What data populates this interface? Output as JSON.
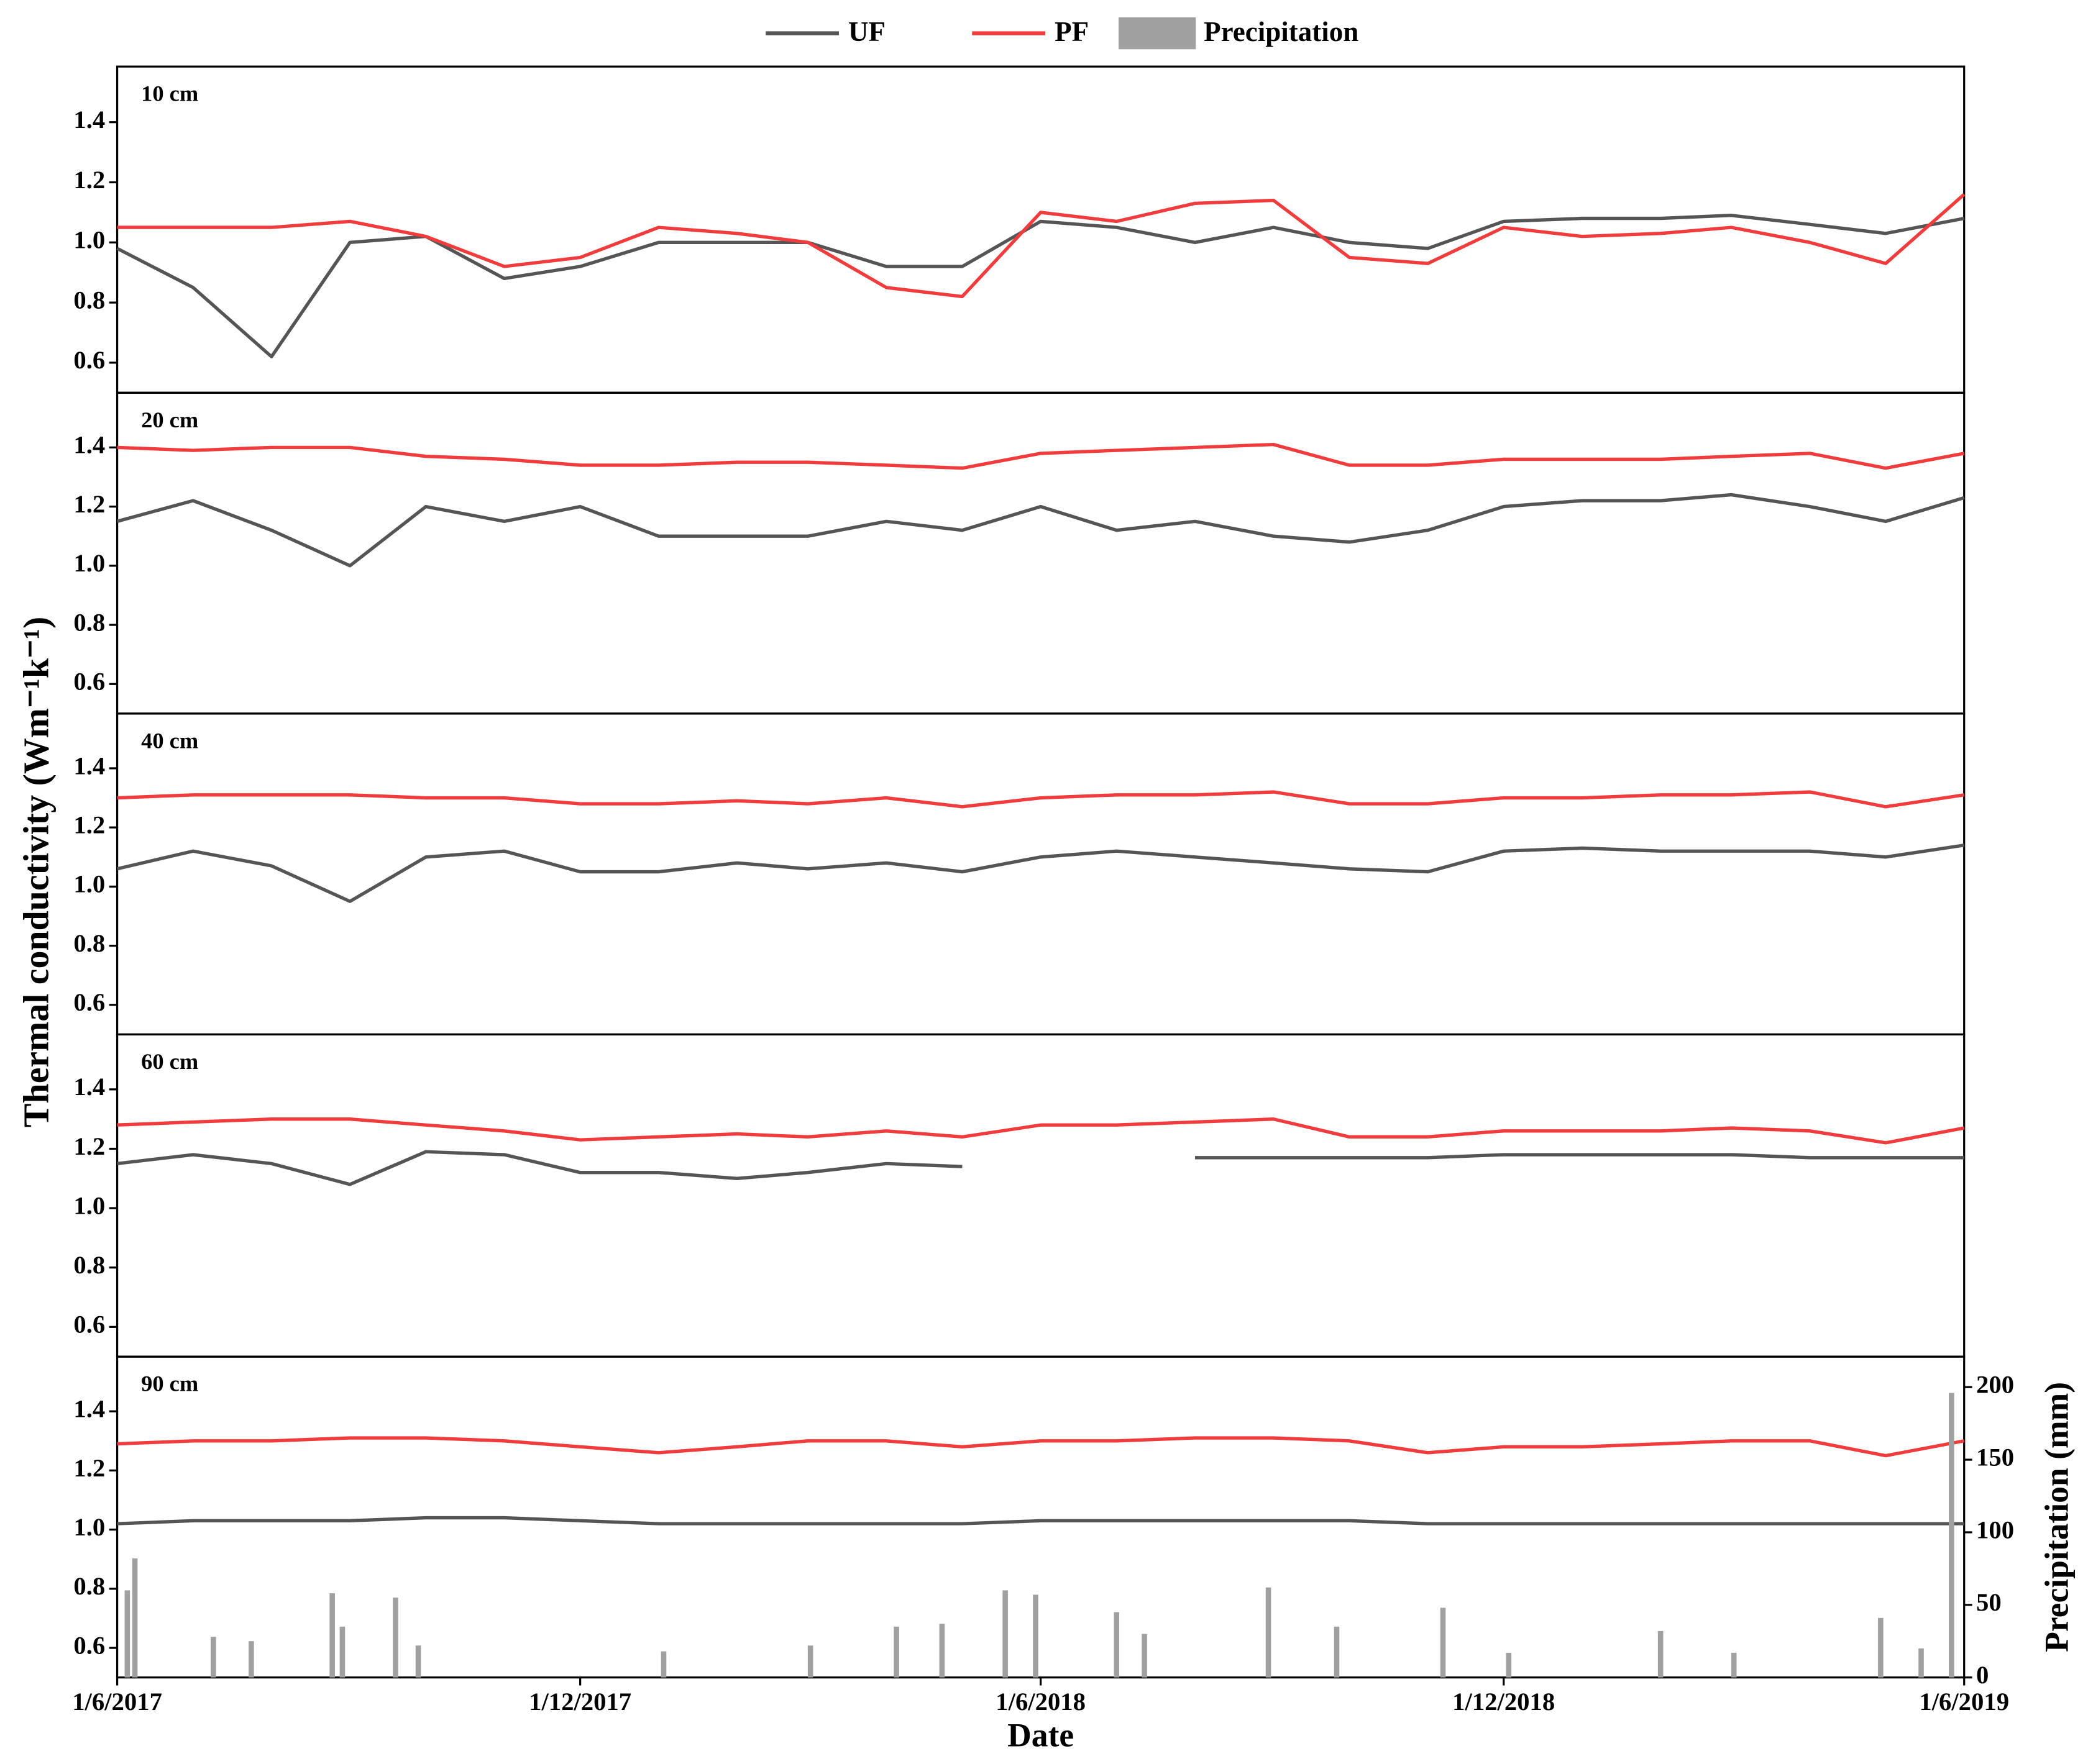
{
  "chart_data": [
    {
      "type": "line",
      "title": "10 cm",
      "ylabel": "Thermal conductivity (Wm⁻¹k⁻¹)",
      "legend": "top",
      "x": [
        "1/6/2017",
        "1/7/2017",
        "1/8/2017",
        "1/9/2017",
        "1/10/2017",
        "1/11/2017",
        "1/12/2017",
        "1/1/2018",
        "1/2/2018",
        "1/3/2018",
        "1/4/2018",
        "1/5/2018",
        "1/6/2018",
        "1/7/2018",
        "1/8/2018",
        "1/9/2018",
        "1/10/2018",
        "1/11/2018",
        "1/12/2018",
        "1/1/2019",
        "1/2/2019",
        "1/3/2019",
        "1/4/2019",
        "1/5/2019",
        "1/6/2019"
      ],
      "xlim": [
        "1/6/2017",
        "1/6/2019"
      ],
      "ylim": [
        0.5,
        1.585
      ],
      "yticks": [
        0.6,
        0.8,
        {
          "value": 1,
          "label": "1.0"
        },
        1.2,
        1.4
      ],
      "series": [
        {
          "name": "UF",
          "color": "#555555",
          "values": [
            0.98,
            0.85,
            0.62,
            1.0,
            1.02,
            0.88,
            0.92,
            1.0,
            1.0,
            1.0,
            0.92,
            0.92,
            1.07,
            1.05,
            1.0,
            1.05,
            1.0,
            0.98,
            1.07,
            1.08,
            1.08,
            1.09,
            1.06,
            1.03,
            1.08
          ]
        },
        {
          "name": "PF",
          "color": "#f03c3c",
          "values": [
            1.05,
            1.05,
            1.05,
            1.07,
            1.02,
            0.92,
            0.95,
            1.05,
            1.03,
            1.0,
            0.85,
            0.82,
            1.1,
            1.07,
            1.13,
            1.14,
            0.95,
            0.93,
            1.05,
            1.02,
            1.03,
            1.05,
            1.0,
            0.93,
            1.16
          ]
        }
      ]
    },
    {
      "type": "line",
      "title": "20 cm",
      "x": [
        "1/6/2017",
        "1/7/2017",
        "1/8/2017",
        "1/9/2017",
        "1/10/2017",
        "1/11/2017",
        "1/12/2017",
        "1/1/2018",
        "1/2/2018",
        "1/3/2018",
        "1/4/2018",
        "1/5/2018",
        "1/6/2018",
        "1/7/2018",
        "1/8/2018",
        "1/9/2018",
        "1/10/2018",
        "1/11/2018",
        "1/12/2018",
        "1/1/2019",
        "1/2/2019",
        "1/3/2019",
        "1/4/2019",
        "1/5/2019",
        "1/6/2019"
      ],
      "xlim": [
        "1/6/2017",
        "1/6/2019"
      ],
      "ylim": [
        0.5,
        1.585
      ],
      "yticks": [
        0.6,
        0.8,
        {
          "value": 1,
          "label": "1.0"
        },
        1.2,
        1.4
      ],
      "series": [
        {
          "name": "UF",
          "color": "#555555",
          "values": [
            1.15,
            1.22,
            1.12,
            1.0,
            1.2,
            1.15,
            1.2,
            1.1,
            1.1,
            1.1,
            1.15,
            1.12,
            1.2,
            1.12,
            1.15,
            1.1,
            1.08,
            1.12,
            1.2,
            1.22,
            1.22,
            1.24,
            1.2,
            1.15,
            1.23
          ]
        },
        {
          "name": "PF",
          "color": "#f03c3c",
          "values": [
            1.4,
            1.39,
            1.4,
            1.4,
            1.37,
            1.36,
            1.34,
            1.34,
            1.35,
            1.35,
            1.34,
            1.33,
            1.38,
            1.39,
            1.4,
            1.41,
            1.34,
            1.34,
            1.36,
            1.36,
            1.36,
            1.37,
            1.38,
            1.33,
            1.38
          ]
        }
      ]
    },
    {
      "type": "line",
      "title": "40 cm",
      "x": [
        "1/6/2017",
        "1/7/2017",
        "1/8/2017",
        "1/9/2017",
        "1/10/2017",
        "1/11/2017",
        "1/12/2017",
        "1/1/2018",
        "1/2/2018",
        "1/3/2018",
        "1/4/2018",
        "1/5/2018",
        "1/6/2018",
        "1/7/2018",
        "1/8/2018",
        "1/9/2018",
        "1/10/2018",
        "1/11/2018",
        "1/12/2018",
        "1/1/2019",
        "1/2/2019",
        "1/3/2019",
        "1/4/2019",
        "1/5/2019",
        "1/6/2019"
      ],
      "xlim": [
        "1/6/2017",
        "1/6/2019"
      ],
      "ylim": [
        0.5,
        1.585
      ],
      "yticks": [
        0.6,
        0.8,
        {
          "value": 1,
          "label": "1.0"
        },
        1.2,
        1.4
      ],
      "series": [
        {
          "name": "UF",
          "color": "#555555",
          "values": [
            1.06,
            1.12,
            1.07,
            0.95,
            1.1,
            1.12,
            1.05,
            1.05,
            1.08,
            1.06,
            1.08,
            1.05,
            1.1,
            1.12,
            1.1,
            1.08,
            1.06,
            1.05,
            1.12,
            1.13,
            1.12,
            1.12,
            1.12,
            1.1,
            1.14
          ]
        },
        {
          "name": "PF",
          "color": "#f03c3c",
          "values": [
            1.3,
            1.31,
            1.31,
            1.31,
            1.3,
            1.3,
            1.28,
            1.28,
            1.29,
            1.28,
            1.3,
            1.27,
            1.3,
            1.31,
            1.31,
            1.32,
            1.28,
            1.28,
            1.3,
            1.3,
            1.31,
            1.31,
            1.32,
            1.27,
            1.31
          ]
        }
      ]
    },
    {
      "type": "line",
      "title": "60 cm",
      "x": [
        "1/6/2017",
        "1/7/2017",
        "1/8/2017",
        "1/9/2017",
        "1/10/2017",
        "1/11/2017",
        "1/12/2017",
        "1/1/2018",
        "1/2/2018",
        "1/3/2018",
        "1/4/2018",
        "1/5/2018",
        "1/6/2018",
        "1/7/2018",
        "1/8/2018",
        "1/9/2018",
        "1/10/2018",
        "1/11/2018",
        "1/12/2018",
        "1/1/2019",
        "1/2/2019",
        "1/3/2019",
        "1/4/2019",
        "1/5/2019",
        "1/6/2019"
      ],
      "xlim": [
        "1/6/2017",
        "1/6/2019"
      ],
      "ylim": [
        0.5,
        1.585
      ],
      "yticks": [
        0.6,
        0.8,
        {
          "value": 1,
          "label": "1.0"
        },
        1.2,
        1.4
      ],
      "series": [
        {
          "name": "UF",
          "color": "#555555",
          "values": [
            1.15,
            1.18,
            1.15,
            1.08,
            1.19,
            1.18,
            1.12,
            1.12,
            1.1,
            1.12,
            1.15,
            1.14,
            null,
            null,
            1.17,
            1.17,
            1.17,
            1.17,
            1.18,
            1.18,
            1.18,
            1.18,
            1.17,
            1.17,
            1.17
          ]
        },
        {
          "name": "PF",
          "color": "#f03c3c",
          "values": [
            1.28,
            1.29,
            1.3,
            1.3,
            1.28,
            1.26,
            1.23,
            1.24,
            1.25,
            1.24,
            1.26,
            1.24,
            1.28,
            1.28,
            1.29,
            1.3,
            1.24,
            1.24,
            1.26,
            1.26,
            1.26,
            1.27,
            1.26,
            1.22,
            1.27
          ]
        }
      ]
    },
    {
      "type": "line",
      "title": "90 cm",
      "xlabel": "Date",
      "y2label": "Precipitation (mm)",
      "x": [
        "1/6/2017",
        "1/7/2017",
        "1/8/2017",
        "1/9/2017",
        "1/10/2017",
        "1/11/2017",
        "1/12/2017",
        "1/1/2018",
        "1/2/2018",
        "1/3/2018",
        "1/4/2018",
        "1/5/2018",
        "1/6/2018",
        "1/7/2018",
        "1/8/2018",
        "1/9/2018",
        "1/10/2018",
        "1/11/2018",
        "1/12/2018",
        "1/1/2019",
        "1/2/2019",
        "1/3/2019",
        "1/4/2019",
        "1/5/2019",
        "1/6/2019"
      ],
      "xlim": [
        "1/6/2017",
        "1/6/2019"
      ],
      "xticks": [
        "1/6/2017",
        "1/12/2017",
        "1/6/2018",
        "1/12/2018",
        "1/6/2019"
      ],
      "ylim": [
        0.5,
        1.585
      ],
      "yticks": [
        0.6,
        0.8,
        {
          "value": 1,
          "label": "1.0"
        },
        1.2,
        1.4
      ],
      "y2lim": [
        0,
        221
      ],
      "y2ticks": [
        0,
        50,
        100,
        150,
        200
      ],
      "series": [
        {
          "name": "UF",
          "color": "#555555",
          "values": [
            1.02,
            1.03,
            1.03,
            1.03,
            1.04,
            1.04,
            1.03,
            1.02,
            1.02,
            1.02,
            1.02,
            1.02,
            1.03,
            1.03,
            1.03,
            1.03,
            1.03,
            1.02,
            1.02,
            1.02,
            1.02,
            1.02,
            1.02,
            1.02,
            1.02
          ]
        },
        {
          "name": "PF",
          "color": "#f03c3c",
          "values": [
            1.29,
            1.3,
            1.3,
            1.31,
            1.31,
            1.3,
            1.28,
            1.26,
            1.28,
            1.3,
            1.3,
            1.28,
            1.3,
            1.3,
            1.31,
            1.31,
            1.3,
            1.26,
            1.28,
            1.28,
            1.29,
            1.3,
            1.3,
            1.25,
            1.3
          ]
        },
        {
          "name": "Precipitation",
          "color": "#a0a0a0",
          "axis": "y2",
          "type": "bar",
          "x": [
            "5/6/2017",
            "8/6/2017",
            "9/7/2017",
            "24/7/2017",
            "25/8/2017",
            "29/8/2017",
            "19/9/2017",
            "28/9/2017",
            "3/1/2018",
            "2/3/2018",
            "5/4/2018",
            "23/4/2018",
            "18/5/2018",
            "30/5/2018",
            "1/7/2018",
            "12/7/2018",
            "30/8/2018",
            "26/9/2018",
            "7/11/2018",
            "3/12/2018",
            "1/2/2019",
            "2/3/2019",
            "29/4/2019",
            "15/5/2019",
            "27/5/2019"
          ],
          "values": [
            60,
            82,
            28,
            25,
            58,
            35,
            55,
            22,
            18,
            22,
            35,
            37,
            60,
            57,
            45,
            30,
            62,
            35,
            48,
            17,
            32,
            17,
            41,
            20,
            196
          ]
        }
      ]
    }
  ]
}
